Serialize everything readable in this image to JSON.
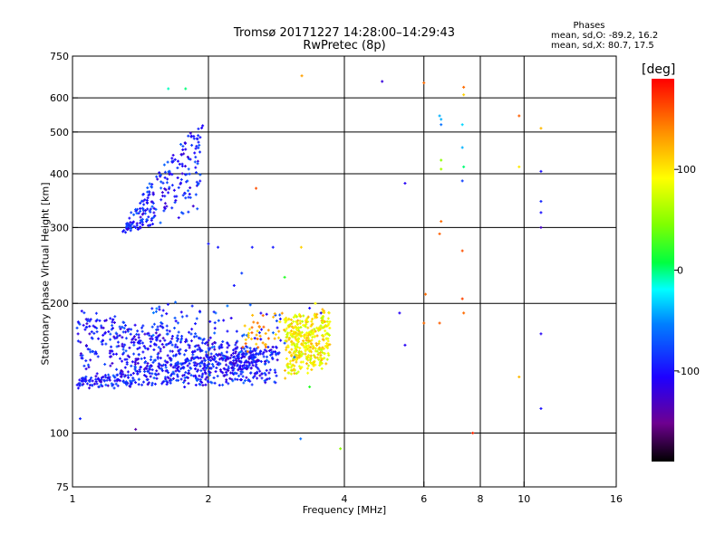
{
  "title_line1": "Tromsø 20171227 14:28:00–14:29:43",
  "title_line2": "RwPretec (8p)",
  "phases": {
    "title": "Phases",
    "o_line": "mean, sd,O: -89.2, 16.2",
    "x_line": "mean, sd,X: 80.7, 17.5"
  },
  "colorbar": {
    "unit": "[deg]",
    "ticks": [
      100,
      0,
      -100
    ],
    "range": [
      -190,
      190
    ]
  },
  "chart_data": {
    "type": "scatter",
    "xlabel": "Frequency [MHz]",
    "ylabel": "Stationary phase Virtual Height [km]",
    "xscale": "log",
    "yscale": "log",
    "xlim": [
      1,
      16
    ],
    "ylim": [
      75,
      750
    ],
    "x_ticks": [
      1,
      2,
      4,
      6,
      8,
      10,
      16
    ],
    "y_ticks": [
      75,
      100,
      200,
      300,
      400,
      500,
      600,
      750
    ],
    "grid": true,
    "clusters": [
      {
        "name": "O-trace low",
        "x_range": [
          1.03,
          2.85
        ],
        "y_from": [
          128,
          133
        ],
        "y_to": [
          130,
          160
        ],
        "phase": -95,
        "count": 420,
        "spread": 0.04
      },
      {
        "name": "O-trace band",
        "x_range": [
          1.03,
          2.6
        ],
        "y_from": [
          140,
          190
        ],
        "y_to": [
          140,
          155
        ],
        "phase": -100,
        "count": 520,
        "spread": 0.1
      },
      {
        "name": "F2 cusp",
        "x_range": [
          1.3,
          1.93
        ],
        "y_from": [
          290,
          300
        ],
        "y_to": [
          330,
          530
        ],
        "phase": -95,
        "count": 240,
        "spread": 0.06
      },
      {
        "name": "mid scatter",
        "x_range": [
          1.5,
          2.95
        ],
        "y_from": [
          160,
          200
        ],
        "y_to": [
          140,
          195
        ],
        "phase": -85,
        "count": 90,
        "spread": 0.09
      },
      {
        "name": "X-trace",
        "x_range": [
          2.95,
          3.7
        ],
        "y_from": [
          135,
          185
        ],
        "y_to": [
          145,
          190
        ],
        "phase": 95,
        "count": 380,
        "spread": 0.08
      },
      {
        "name": "X-trace upper",
        "x_range": [
          2.4,
          2.9
        ],
        "y_from": [
          155,
          185
        ],
        "y_to": [
          160,
          190
        ],
        "phase": 125,
        "count": 40,
        "spread": 0.05
      }
    ],
    "points": [
      [
        1.63,
        630,
        -10
      ],
      [
        1.78,
        630,
        0
      ],
      [
        3.22,
        675,
        130
      ],
      [
        3.21,
        270,
        110
      ],
      [
        2.95,
        230,
        20
      ],
      [
        3.2,
        97,
        -60
      ],
      [
        3.1,
        150,
        -60
      ],
      [
        3.35,
        128,
        20
      ],
      [
        2.55,
        370,
        160
      ],
      [
        2.37,
        235,
        -80
      ],
      [
        2.0,
        275,
        -95
      ],
      [
        2.1,
        270,
        -95
      ],
      [
        2.5,
        270,
        -95
      ],
      [
        2.78,
        270,
        -95
      ],
      [
        2.28,
        220,
        -95
      ],
      [
        3.92,
        92,
        50
      ],
      [
        4.85,
        655,
        -120
      ],
      [
        5.45,
        380,
        -110
      ],
      [
        5.3,
        190,
        -110
      ],
      [
        5.45,
        160,
        -110
      ],
      [
        6.0,
        650,
        150
      ],
      [
        6.05,
        210,
        150
      ],
      [
        6.0,
        180,
        150
      ],
      [
        6.5,
        180,
        155
      ],
      [
        6.55,
        310,
        150
      ],
      [
        6.5,
        290,
        155
      ],
      [
        6.55,
        430,
        50
      ],
      [
        6.55,
        410,
        60
      ],
      [
        6.55,
        535,
        -40
      ],
      [
        6.55,
        520,
        -60
      ],
      [
        6.5,
        545,
        -40
      ],
      [
        7.35,
        635,
        150
      ],
      [
        7.35,
        610,
        110
      ],
      [
        7.3,
        520,
        -30
      ],
      [
        7.3,
        460,
        -40
      ],
      [
        7.35,
        415,
        0
      ],
      [
        7.3,
        385,
        -80
      ],
      [
        7.3,
        265,
        160
      ],
      [
        7.3,
        205,
        165
      ],
      [
        7.35,
        190,
        150
      ],
      [
        7.7,
        100,
        175
      ],
      [
        9.75,
        545,
        155
      ],
      [
        9.75,
        415,
        100
      ],
      [
        9.75,
        135,
        120
      ],
      [
        10.9,
        510,
        120
      ],
      [
        10.9,
        405,
        -100
      ],
      [
        10.9,
        345,
        -90
      ],
      [
        10.9,
        325,
        -100
      ],
      [
        10.9,
        300,
        -130
      ],
      [
        10.9,
        170,
        -110
      ],
      [
        10.9,
        114,
        -100
      ],
      [
        1.04,
        108,
        -90
      ],
      [
        1.38,
        102,
        -140
      ],
      [
        3.55,
        190,
        -110
      ],
      [
        3.35,
        195,
        -100
      ],
      [
        3.45,
        200,
        90
      ],
      [
        3.7,
        190,
        100
      ]
    ]
  }
}
